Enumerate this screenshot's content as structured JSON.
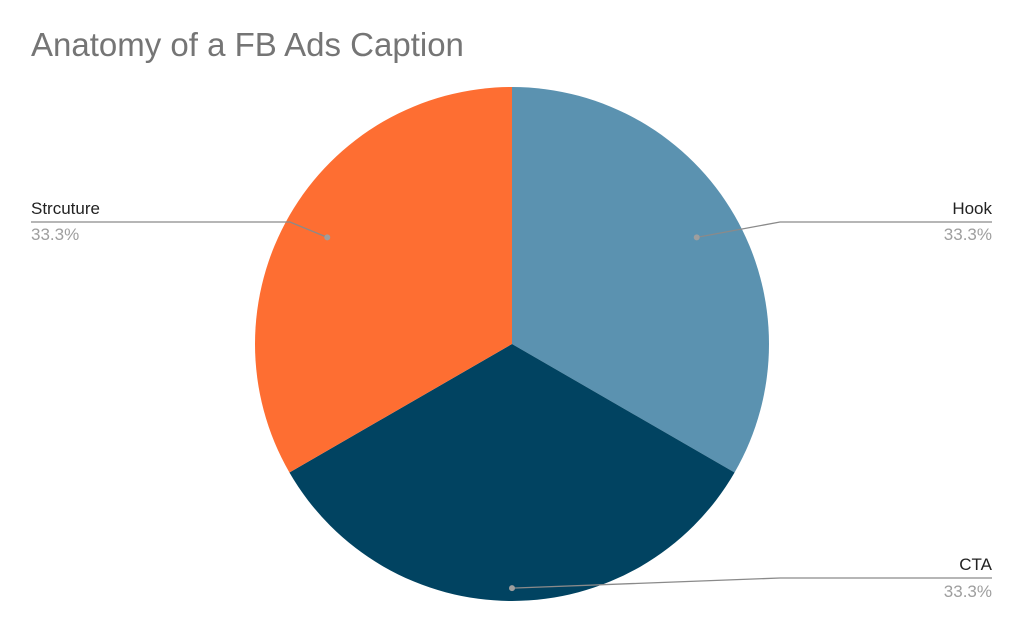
{
  "chart_data": {
    "type": "pie",
    "title": "Anatomy of a FB Ads Caption",
    "slices": [
      {
        "label": "Hook",
        "value": 33.3,
        "percent_label": "33.3%",
        "color": "#5b92b0"
      },
      {
        "label": "CTA",
        "value": 33.3,
        "percent_label": "33.3%",
        "color": "#014361"
      },
      {
        "label": "Strcuture",
        "value": 33.3,
        "percent_label": "33.3%",
        "color": "#fe6e32"
      }
    ],
    "start_angle_deg": 0,
    "direction": "clockwise",
    "legend": "none",
    "label_style": "leader-lines"
  }
}
